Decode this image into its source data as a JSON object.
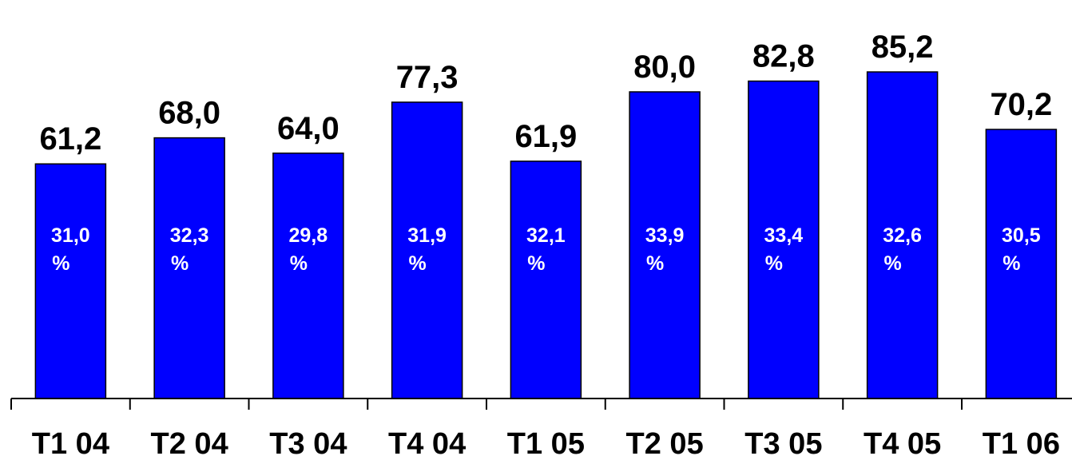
{
  "chart_data": {
    "type": "bar",
    "categories": [
      "T1 04",
      "T2 04",
      "T3 04",
      "T4 04",
      "T1 05",
      "T2 05",
      "T3 05",
      "T4 05",
      "T1 06"
    ],
    "values": [
      61.2,
      68.0,
      64.0,
      77.3,
      61.9,
      80.0,
      82.8,
      85.2,
      70.2
    ],
    "value_labels": [
      "61,2",
      "68,0",
      "64,0",
      "77,3",
      "61,9",
      "80,0",
      "82,8",
      "85,2",
      "70,2"
    ],
    "inner_labels": [
      "31,0",
      "32,3",
      "29,8",
      "31,9",
      "32,1",
      "33,9",
      "33,4",
      "32,6",
      "30,5"
    ],
    "inner_unit": "%",
    "ylim": [
      0,
      100
    ],
    "grid": false,
    "legend": "none",
    "colors": {
      "bar": "#0000ff",
      "bar_outline": "#000000",
      "value_text": "#000000",
      "inner_text": "#ffffff",
      "axis": "#000000"
    }
  }
}
